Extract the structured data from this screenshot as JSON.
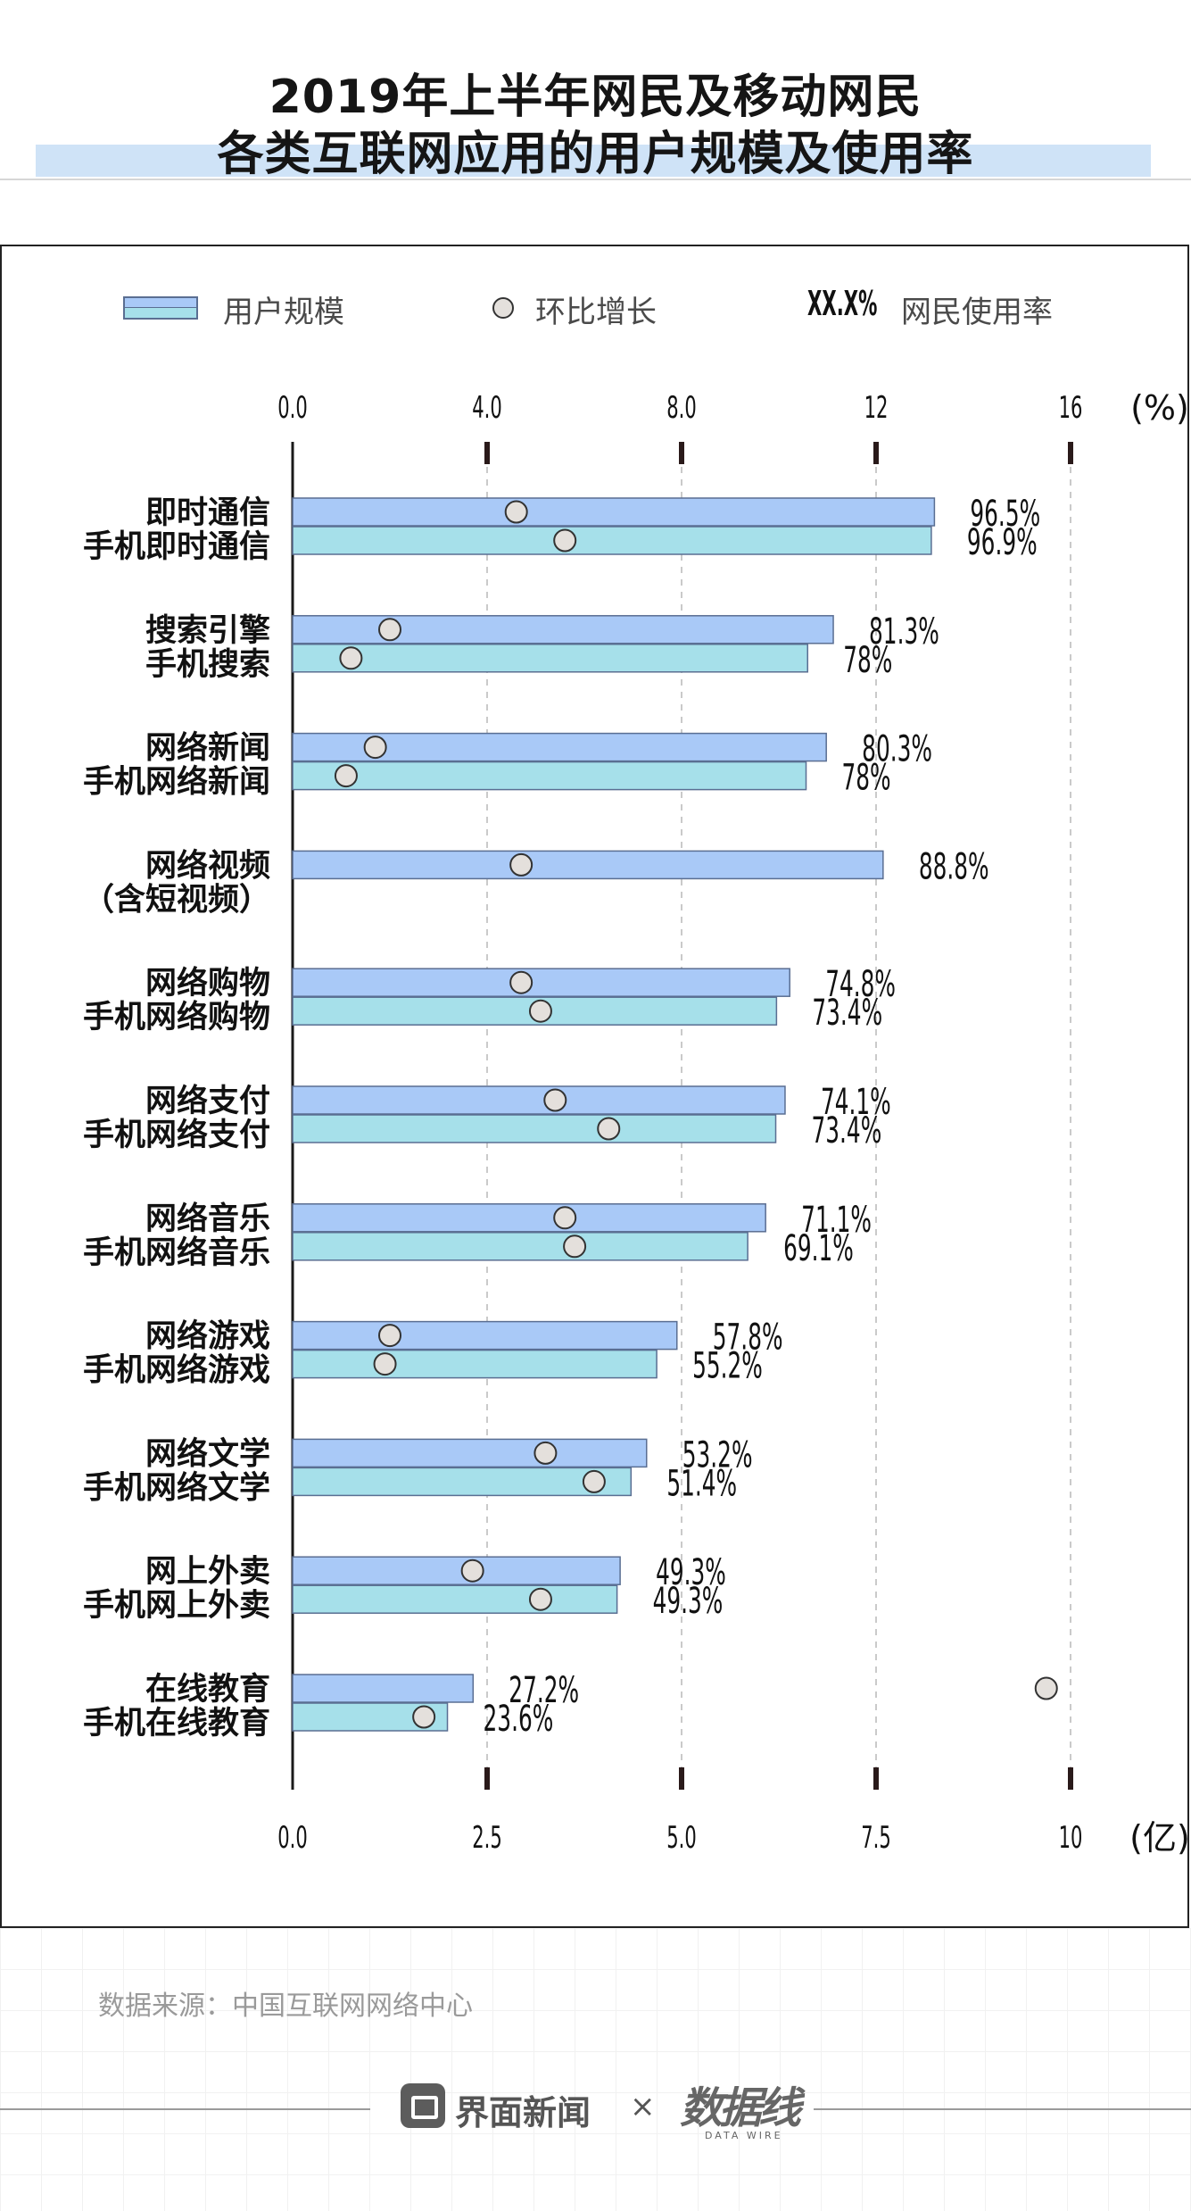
{
  "title": {
    "line1": "2019年上半年网民及移动网民",
    "line2": "各类互联网应用的用户规模及使用率"
  },
  "legend": {
    "bar": "用户规模",
    "dot": "环比增长",
    "rate_sample": "XX.X%",
    "rate": "网民使用率"
  },
  "source": "数据来源：中国互联网网络中心",
  "footer": {
    "brand": "界面新闻",
    "times": "×",
    "logo": "数据线",
    "logo_sub": "DATA WIRE"
  },
  "colors": {
    "bar_netizen": "#a9c9f7",
    "bar_mobile": "#a6e0ea",
    "bar_stroke": "#5a6e92",
    "dot_fill": "#e4e0dc"
  },
  "chart_data": {
    "type": "bar",
    "orientation": "horizontal",
    "title": "2019年上半年网民及移动网民各类互联网应用的用户规模及使用率",
    "x_bottom": {
      "label": "(亿)",
      "range": [
        0,
        10
      ],
      "ticks": [
        "0.0",
        "2.5",
        "5.0",
        "7.5",
        "10"
      ]
    },
    "x_top": {
      "label": "(%)",
      "range": [
        0,
        16
      ],
      "ticks": [
        "0.0",
        "4.0",
        "8.0",
        "12",
        "16"
      ]
    },
    "groups": [
      {
        "labels": [
          "即时通信",
          "手机即时通信"
        ],
        "bars": [
          {
            "name": "即时通信",
            "users": 8.25,
            "rate": "96.5%",
            "growth": 4.6
          },
          {
            "name": "手机即时通信",
            "users": 8.21,
            "rate": "96.9%",
            "growth": 5.6
          }
        ]
      },
      {
        "labels": [
          "搜索引擎",
          "手机搜索"
        ],
        "bars": [
          {
            "name": "搜索引擎",
            "users": 6.95,
            "rate": "81.3%",
            "growth": 2.0
          },
          {
            "name": "手机搜索",
            "users": 6.62,
            "rate": "78%",
            "growth": 1.2
          }
        ]
      },
      {
        "labels": [
          "网络新闻",
          "手机网络新闻"
        ],
        "bars": [
          {
            "name": "网络新闻",
            "users": 6.86,
            "rate": "80.3%",
            "growth": 1.7
          },
          {
            "name": "手机网络新闻",
            "users": 6.6,
            "rate": "78%",
            "growth": 1.1
          }
        ]
      },
      {
        "labels": [
          "网络视频",
          "（含短视频）"
        ],
        "bars": [
          {
            "name": "网络视频（含短视频）",
            "users": 7.59,
            "rate": "88.8%",
            "growth": 4.7
          }
        ]
      },
      {
        "labels": [
          "网络购物",
          "手机网络购物"
        ],
        "bars": [
          {
            "name": "网络购物",
            "users": 6.39,
            "rate": "74.8%",
            "growth": 4.7
          },
          {
            "name": "手机网络购物",
            "users": 6.22,
            "rate": "73.4%",
            "growth": 5.1
          }
        ]
      },
      {
        "labels": [
          "网络支付",
          "手机网络支付"
        ],
        "bars": [
          {
            "name": "网络支付",
            "users": 6.33,
            "rate": "74.1%",
            "growth": 5.4
          },
          {
            "name": "手机网络支付",
            "users": 6.21,
            "rate": "73.4%",
            "growth": 6.5
          }
        ]
      },
      {
        "labels": [
          "网络音乐",
          "手机网络音乐"
        ],
        "bars": [
          {
            "name": "网络音乐",
            "users": 6.08,
            "rate": "71.1%",
            "growth": 5.6
          },
          {
            "name": "手机网络音乐",
            "users": 5.85,
            "rate": "69.1%",
            "growth": 5.8
          }
        ]
      },
      {
        "labels": [
          "网络游戏",
          "手机网络游戏"
        ],
        "bars": [
          {
            "name": "网络游戏",
            "users": 4.94,
            "rate": "57.8%",
            "growth": 2.0
          },
          {
            "name": "手机网络游戏",
            "users": 4.68,
            "rate": "55.2%",
            "growth": 1.9
          }
        ]
      },
      {
        "labels": [
          "网络文学",
          "手机网络文学"
        ],
        "bars": [
          {
            "name": "网络文学",
            "users": 4.55,
            "rate": "53.2%",
            "growth": 5.2
          },
          {
            "name": "手机网络文学",
            "users": 4.35,
            "rate": "51.4%",
            "growth": 6.2
          }
        ]
      },
      {
        "labels": [
          "网上外卖",
          "手机网上外卖"
        ],
        "bars": [
          {
            "name": "网上外卖",
            "users": 4.21,
            "rate": "49.3%",
            "growth": 3.7
          },
          {
            "name": "手机网上外卖",
            "users": 4.17,
            "rate": "49.3%",
            "growth": 5.1
          }
        ]
      },
      {
        "labels": [
          "在线教育",
          "手机在线教育"
        ],
        "bars": [
          {
            "name": "在线教育",
            "users": 2.32,
            "rate": "27.2%",
            "growth": 15.5
          },
          {
            "name": "手机在线教育",
            "users": 1.99,
            "rate": "23.6%",
            "growth": 2.7
          }
        ]
      }
    ]
  }
}
